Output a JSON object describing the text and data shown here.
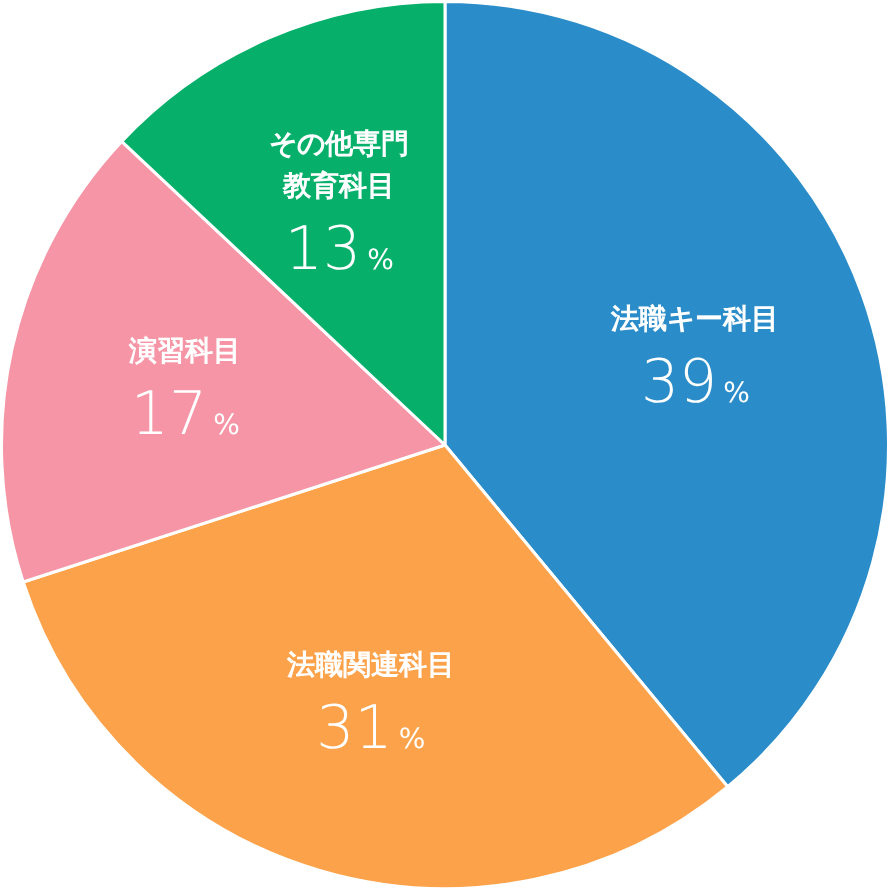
{
  "chart_data": {
    "type": "pie",
    "categories": [
      "法職キー科目",
      "法職関連科目",
      "演習科目",
      "その他専門教育科目"
    ],
    "values": [
      39,
      31,
      17,
      13
    ],
    "colors": [
      "#2a8cc8",
      "#fca24a",
      "#f595a5",
      "#06b06a"
    ],
    "value_labels": [
      "39%",
      "31%",
      "17%",
      "13%"
    ],
    "legend": false
  }
}
